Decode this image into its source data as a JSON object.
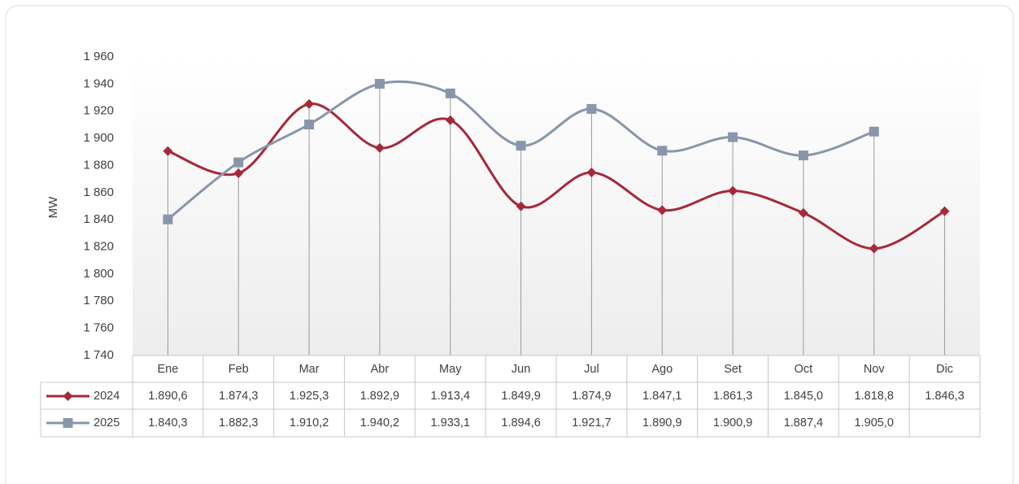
{
  "chart_data": {
    "type": "line",
    "y_label": "MW",
    "categories": [
      "Ene",
      "Feb",
      "Mar",
      "Abr",
      "May",
      "Jun",
      "Jul",
      "Ago",
      "Set",
      "Oct",
      "Nov",
      "Dic"
    ],
    "series": [
      {
        "name": "2024",
        "color": "#a5293a",
        "marker": "diamond",
        "values": [
          1890.6,
          1874.3,
          1925.3,
          1892.9,
          1913.4,
          1849.9,
          1874.9,
          1847.1,
          1861.3,
          1845.0,
          1818.8,
          1846.3
        ],
        "value_labels": [
          "1.890,6",
          "1.874,3",
          "1.925,3",
          "1.892,9",
          "1.913,4",
          "1.849,9",
          "1.874,9",
          "1.847,1",
          "1.861,3",
          "1.845,0",
          "1.818,8",
          "1.846,3"
        ]
      },
      {
        "name": "2025",
        "color": "#8896ab",
        "marker": "square",
        "values": [
          1840.3,
          1882.3,
          1910.2,
          1940.2,
          1933.1,
          1894.6,
          1921.7,
          1890.9,
          1900.9,
          1887.4,
          1905.0,
          null
        ],
        "value_labels": [
          "1.840,3",
          "1.882,3",
          "1.910,2",
          "1.940,2",
          "1.933,1",
          "1.894,6",
          "1.921,7",
          "1.890,9",
          "1.900,9",
          "1.887,4",
          "1.905,0",
          null
        ]
      }
    ],
    "ylim": [
      1740,
      1960
    ],
    "yticks": [
      {
        "value": 1740,
        "label": "1 740"
      },
      {
        "value": 1760,
        "label": "1 760"
      },
      {
        "value": 1780,
        "label": "1 780"
      },
      {
        "value": 1800,
        "label": "1 800"
      },
      {
        "value": 1820,
        "label": "1 820"
      },
      {
        "value": 1840,
        "label": "1 840"
      },
      {
        "value": 1860,
        "label": "1 860"
      },
      {
        "value": 1880,
        "label": "1 880"
      },
      {
        "value": 1900,
        "label": "1 900"
      },
      {
        "value": 1920,
        "label": "1 920"
      },
      {
        "value": 1940,
        "label": "1 940"
      },
      {
        "value": 1960,
        "label": "1 960"
      }
    ],
    "drop_lines": true
  }
}
